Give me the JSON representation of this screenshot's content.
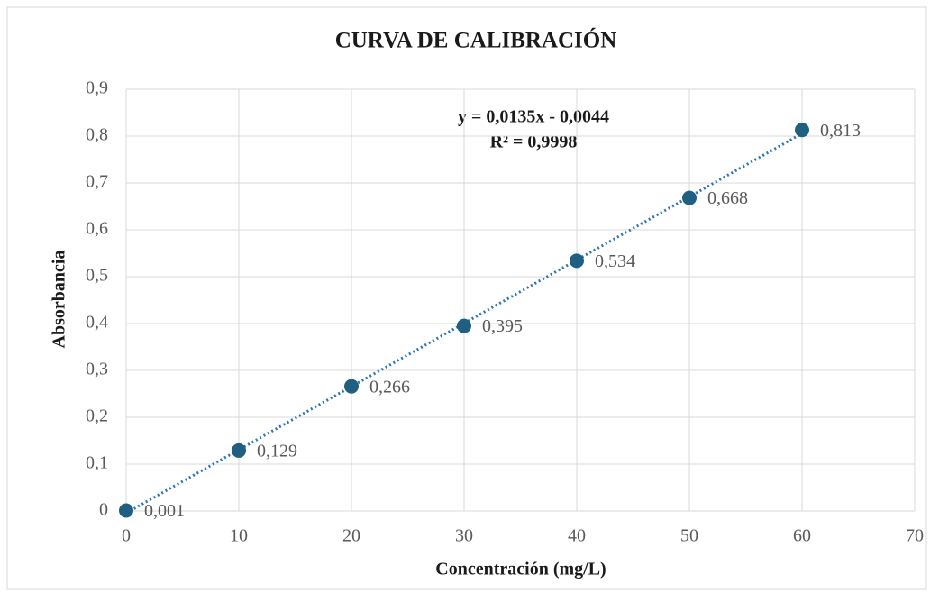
{
  "chart_data": {
    "type": "scatter",
    "title": "CURVA DE CALIBRACIÓN",
    "x_label": "Concentración (mg/L)",
    "y_label": "Absorbancia",
    "x": [
      0,
      10,
      20,
      30,
      40,
      50,
      60
    ],
    "values": [
      0.001,
      0.129,
      0.266,
      0.395,
      0.534,
      0.668,
      0.813
    ],
    "value_labels": [
      "0,001",
      "0,129",
      "0,266",
      "0,395",
      "0,534",
      "0,668",
      "0,813"
    ],
    "color": "#1f5f82",
    "xlim": [
      0,
      70
    ],
    "xticks": [
      0,
      10,
      20,
      30,
      40,
      50,
      60,
      70
    ],
    "ylim": [
      0,
      0.9
    ],
    "yticks": [
      0,
      {
        "value": 0.1,
        "label": "0,1"
      },
      {
        "value": 0.2,
        "label": "0,2"
      },
      {
        "value": 0.3,
        "label": "0,3"
      },
      {
        "value": 0.4,
        "label": "0,4"
      },
      {
        "value": 0.5,
        "label": "0,5"
      },
      {
        "value": 0.6,
        "label": "0,6"
      },
      {
        "value": 0.7,
        "label": "0,7"
      },
      {
        "value": 0.8,
        "label": "0,8"
      },
      {
        "value": 0.9,
        "label": "0,9"
      }
    ],
    "grid": true,
    "trendline": {
      "equation": "y = 0,0135x - 0,0044",
      "r2": "R² = 0,9998",
      "slope": 0.0135,
      "intercept": -0.0044,
      "color": "#2e75b6"
    }
  }
}
